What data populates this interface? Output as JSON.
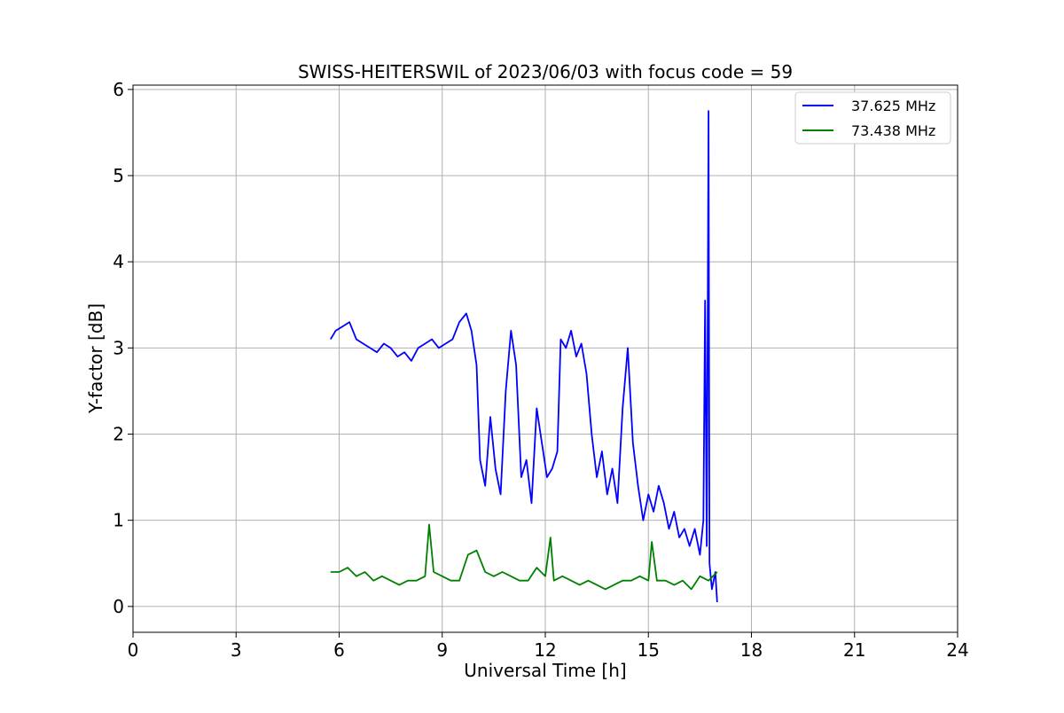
{
  "chart_data": {
    "type": "line",
    "title": "SWISS-HEITERSWIL of 2023/06/03 with focus code = 59",
    "xlabel": "Universal Time [h]",
    "ylabel": "Y-factor [dB]",
    "xlim": [
      0,
      24
    ],
    "ylim": [
      -0.3,
      6.05
    ],
    "xticks": [
      0,
      3,
      6,
      9,
      12,
      15,
      18,
      21,
      24
    ],
    "yticks": [
      0,
      1,
      2,
      3,
      4,
      5,
      6
    ],
    "grid": true,
    "legend_position": "top-right",
    "series": [
      {
        "name": "37.625 MHz",
        "color": "#0000ff",
        "x": [
          5.75,
          5.9,
          6.1,
          6.3,
          6.5,
          6.7,
          6.9,
          7.1,
          7.3,
          7.5,
          7.7,
          7.9,
          8.1,
          8.3,
          8.5,
          8.7,
          8.9,
          9.1,
          9.3,
          9.5,
          9.7,
          9.85,
          10.0,
          10.1,
          10.25,
          10.4,
          10.55,
          10.7,
          10.85,
          11.0,
          11.15,
          11.3,
          11.45,
          11.6,
          11.75,
          11.9,
          12.05,
          12.2,
          12.35,
          12.45,
          12.6,
          12.75,
          12.9,
          13.05,
          13.2,
          13.35,
          13.5,
          13.65,
          13.8,
          13.95,
          14.1,
          14.25,
          14.4,
          14.55,
          14.7,
          14.85,
          15.0,
          15.15,
          15.3,
          15.45,
          15.6,
          15.75,
          15.9,
          16.05,
          16.2,
          16.35,
          16.5,
          16.6,
          16.65,
          16.7,
          16.75,
          16.78,
          16.85,
          16.95,
          17.0
        ],
        "y": [
          3.1,
          3.2,
          3.25,
          3.3,
          3.1,
          3.05,
          3.0,
          2.95,
          3.05,
          3.0,
          2.9,
          2.95,
          2.85,
          3.0,
          3.05,
          3.1,
          3.0,
          3.05,
          3.1,
          3.3,
          3.4,
          3.2,
          2.8,
          1.7,
          1.4,
          2.2,
          1.6,
          1.3,
          2.5,
          3.2,
          2.8,
          1.5,
          1.7,
          1.2,
          2.3,
          1.9,
          1.5,
          1.6,
          1.8,
          3.1,
          3.0,
          3.2,
          2.9,
          3.05,
          2.7,
          2.0,
          1.5,
          1.8,
          1.3,
          1.6,
          1.2,
          2.3,
          3.0,
          1.9,
          1.4,
          1.0,
          1.3,
          1.1,
          1.4,
          1.2,
          0.9,
          1.1,
          0.8,
          0.9,
          0.7,
          0.9,
          0.6,
          1.0,
          3.55,
          0.7,
          5.75,
          0.5,
          0.2,
          0.4,
          0.05
        ]
      },
      {
        "name": "73.438 MHz",
        "color": "#008000",
        "x": [
          5.75,
          6.0,
          6.25,
          6.5,
          6.75,
          7.0,
          7.25,
          7.5,
          7.75,
          8.0,
          8.25,
          8.5,
          8.62,
          8.75,
          9.0,
          9.25,
          9.5,
          9.75,
          10.0,
          10.25,
          10.5,
          10.75,
          11.0,
          11.25,
          11.5,
          11.75,
          12.0,
          12.15,
          12.25,
          12.5,
          12.75,
          13.0,
          13.25,
          13.5,
          13.75,
          14.0,
          14.25,
          14.5,
          14.75,
          15.0,
          15.1,
          15.25,
          15.5,
          15.75,
          16.0,
          16.25,
          16.5,
          16.75,
          17.0
        ],
        "y": [
          0.4,
          0.4,
          0.45,
          0.35,
          0.4,
          0.3,
          0.35,
          0.3,
          0.25,
          0.3,
          0.3,
          0.35,
          0.95,
          0.4,
          0.35,
          0.3,
          0.3,
          0.6,
          0.65,
          0.4,
          0.35,
          0.4,
          0.35,
          0.3,
          0.3,
          0.45,
          0.35,
          0.8,
          0.3,
          0.35,
          0.3,
          0.25,
          0.3,
          0.25,
          0.2,
          0.25,
          0.3,
          0.3,
          0.35,
          0.3,
          0.75,
          0.3,
          0.3,
          0.25,
          0.3,
          0.2,
          0.35,
          0.3,
          0.4
        ]
      }
    ]
  }
}
